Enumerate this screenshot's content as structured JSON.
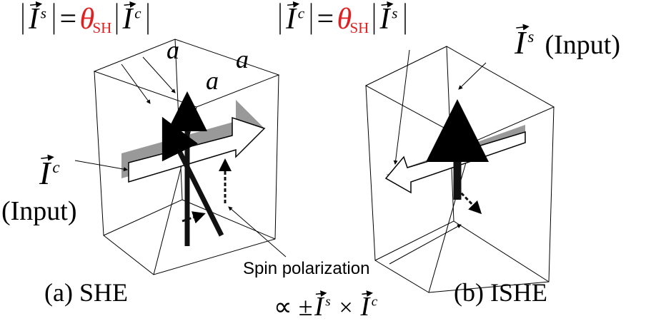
{
  "panel_a": {
    "equation": {
      "lhs": {
        "base": "I",
        "sup": "s"
      },
      "equals": "=",
      "coefficient": {
        "base": "θ",
        "sub": "SH"
      },
      "rhs": {
        "base": "I",
        "sup": "c"
      }
    },
    "side_labels": [
      "a",
      "a",
      "a"
    ],
    "input_label": {
      "base": "I",
      "sup": "c"
    },
    "input_note": "(Input)",
    "caption": "(a)  SHE"
  },
  "panel_b": {
    "equation": {
      "lhs": {
        "base": "I",
        "sup": "c"
      },
      "equals": "=",
      "coefficient": {
        "base": "θ",
        "sub": "SH"
      },
      "rhs": {
        "base": "I",
        "sup": "s"
      }
    },
    "input_label": {
      "base": "I",
      "sup": "s"
    },
    "input_note": "(Input)",
    "caption": "(b)  ISHE"
  },
  "spin_polarization": "Spin polarization",
  "cross_product": {
    "prefix": "∝ ±",
    "left": {
      "base": "I",
      "sup": "s"
    },
    "times": "×",
    "right": {
      "base": "I",
      "sup": "c"
    }
  }
}
